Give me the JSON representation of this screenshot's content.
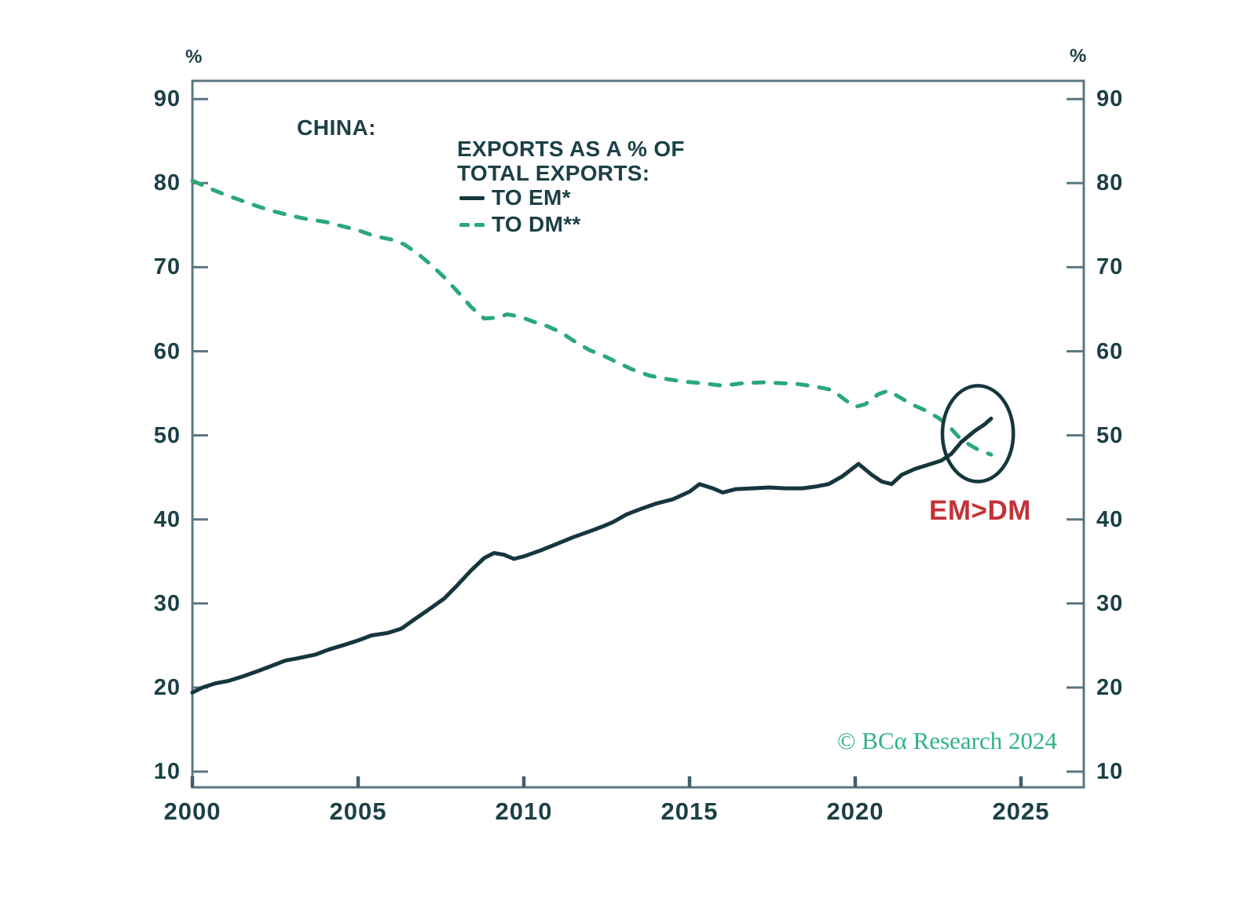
{
  "header": {
    "percent_left": "%",
    "percent_right": "%"
  },
  "title": "CHINA:",
  "legend": {
    "heading_line1": "EXPORTS AS A % OF",
    "heading_line2": "TOTAL EXPORTS:",
    "items": [
      {
        "label": "TO EM*",
        "line_style": "solid",
        "color": "#16363d"
      },
      {
        "label": "TO DM**",
        "line_style": "dashed",
        "color": "#2aa87b"
      }
    ]
  },
  "annotation": {
    "label": "EM>DM",
    "color": "#c43238"
  },
  "watermark": {
    "text": "© BCα Research 2024",
    "color": "#2fb381"
  },
  "colors": {
    "axis": "#5a7781",
    "text": "#1c4046",
    "em_line": "#16363d",
    "dm_line": "#2aa87b",
    "circle": "#16363d",
    "background": "#ffffff"
  },
  "chart_data": {
    "type": "line",
    "title": "CHINA: EXPORTS AS A % OF TOTAL EXPORTS",
    "xlabel": "",
    "ylabel": "%",
    "xlim": [
      2000,
      2026.9
    ],
    "ylim": [
      7.7,
      92.2
    ],
    "grid": false,
    "legend_position": "top-left-inside",
    "x_ticks": [
      2000,
      2005,
      2010,
      2015,
      2020,
      2025
    ],
    "y_ticks": [
      10,
      20,
      30,
      40,
      50,
      60,
      70,
      80,
      90
    ],
    "series": [
      {
        "name": "TO EM*",
        "style": "solid",
        "color": "#16363d",
        "points": [
          [
            2000.0,
            19.4
          ],
          [
            2000.3,
            20.0
          ],
          [
            2000.7,
            20.5
          ],
          [
            2001.1,
            20.8
          ],
          [
            2001.5,
            21.3
          ],
          [
            2002.0,
            22.0
          ],
          [
            2002.4,
            22.6
          ],
          [
            2002.8,
            23.2
          ],
          [
            2003.2,
            23.5
          ],
          [
            2003.7,
            23.9
          ],
          [
            2004.1,
            24.5
          ],
          [
            2004.6,
            25.1
          ],
          [
            2005.0,
            25.6
          ],
          [
            2005.4,
            26.2
          ],
          [
            2005.9,
            26.5
          ],
          [
            2006.3,
            27.0
          ],
          [
            2006.7,
            28.1
          ],
          [
            2007.1,
            29.2
          ],
          [
            2007.6,
            30.6
          ],
          [
            2008.0,
            32.2
          ],
          [
            2008.4,
            33.9
          ],
          [
            2008.8,
            35.4
          ],
          [
            2009.1,
            36.0
          ],
          [
            2009.4,
            35.8
          ],
          [
            2009.7,
            35.3
          ],
          [
            2010.0,
            35.6
          ],
          [
            2010.5,
            36.3
          ],
          [
            2011.0,
            37.1
          ],
          [
            2011.5,
            37.9
          ],
          [
            2012.0,
            38.6
          ],
          [
            2012.4,
            39.2
          ],
          [
            2012.7,
            39.7
          ],
          [
            2013.1,
            40.6
          ],
          [
            2013.5,
            41.2
          ],
          [
            2014.0,
            41.9
          ],
          [
            2014.5,
            42.4
          ],
          [
            2015.0,
            43.3
          ],
          [
            2015.3,
            44.2
          ],
          [
            2015.7,
            43.7
          ],
          [
            2016.0,
            43.2
          ],
          [
            2016.4,
            43.6
          ],
          [
            2016.9,
            43.7
          ],
          [
            2017.4,
            43.8
          ],
          [
            2017.9,
            43.7
          ],
          [
            2018.4,
            43.7
          ],
          [
            2018.8,
            43.9
          ],
          [
            2019.2,
            44.2
          ],
          [
            2019.6,
            45.1
          ],
          [
            2020.1,
            46.6
          ],
          [
            2020.5,
            45.3
          ],
          [
            2020.8,
            44.5
          ],
          [
            2021.1,
            44.2
          ],
          [
            2021.4,
            45.3
          ],
          [
            2021.8,
            46.0
          ],
          [
            2022.2,
            46.5
          ],
          [
            2022.6,
            47.0
          ],
          [
            2022.9,
            47.8
          ],
          [
            2023.2,
            49.2
          ],
          [
            2023.6,
            50.5
          ],
          [
            2023.9,
            51.3
          ],
          [
            2024.1,
            52.0
          ]
        ]
      },
      {
        "name": "TO DM**",
        "style": "dashed",
        "color": "#2aa87b",
        "points": [
          [
            2000.0,
            80.3
          ],
          [
            2000.5,
            79.4
          ],
          [
            2001.0,
            78.6
          ],
          [
            2001.5,
            77.9
          ],
          [
            2002.0,
            77.2
          ],
          [
            2002.5,
            76.6
          ],
          [
            2003.0,
            76.1
          ],
          [
            2003.5,
            75.7
          ],
          [
            2004.0,
            75.4
          ],
          [
            2004.5,
            74.9
          ],
          [
            2005.0,
            74.4
          ],
          [
            2005.5,
            73.7
          ],
          [
            2006.0,
            73.3
          ],
          [
            2006.4,
            72.7
          ],
          [
            2006.8,
            71.6
          ],
          [
            2007.2,
            70.3
          ],
          [
            2007.6,
            68.8
          ],
          [
            2008.0,
            67.1
          ],
          [
            2008.4,
            65.3
          ],
          [
            2008.8,
            63.9
          ],
          [
            2009.2,
            64.0
          ],
          [
            2009.5,
            64.4
          ],
          [
            2009.9,
            64.1
          ],
          [
            2010.3,
            63.5
          ],
          [
            2010.7,
            63.0
          ],
          [
            2011.1,
            62.3
          ],
          [
            2011.6,
            61.0
          ],
          [
            2012.0,
            60.1
          ],
          [
            2012.4,
            59.5
          ],
          [
            2012.8,
            58.7
          ],
          [
            2013.3,
            57.8
          ],
          [
            2013.8,
            57.1
          ],
          [
            2014.3,
            56.7
          ],
          [
            2014.8,
            56.4
          ],
          [
            2015.4,
            56.2
          ],
          [
            2016.0,
            55.9
          ],
          [
            2016.6,
            56.2
          ],
          [
            2017.2,
            56.3
          ],
          [
            2017.8,
            56.2
          ],
          [
            2018.3,
            56.1
          ],
          [
            2018.8,
            55.8
          ],
          [
            2019.3,
            55.4
          ],
          [
            2019.7,
            54.2
          ],
          [
            2020.0,
            53.4
          ],
          [
            2020.3,
            53.7
          ],
          [
            2020.7,
            54.9
          ],
          [
            2021.0,
            55.3
          ],
          [
            2021.4,
            54.4
          ],
          [
            2021.7,
            53.7
          ],
          [
            2022.1,
            53.0
          ],
          [
            2022.5,
            52.1
          ],
          [
            2022.8,
            51.2
          ],
          [
            2023.1,
            49.9
          ],
          [
            2023.4,
            49.0
          ],
          [
            2023.7,
            48.3
          ],
          [
            2024.1,
            47.7
          ]
        ]
      }
    ],
    "annotations": {
      "crossover_circle": {
        "x_year": 2023.7,
        "y_value": 50.2,
        "rx_years": 1.07,
        "ry_units": 5.7
      },
      "crossover_label": "EM>DM"
    }
  }
}
